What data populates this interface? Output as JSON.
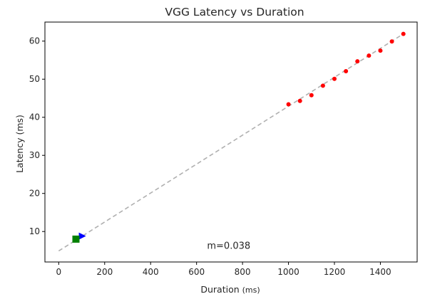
{
  "chart_data": {
    "type": "scatter",
    "title": "VGG Latency vs Duration",
    "xlabel": "Duration",
    "xlabel_unit": "(ms)",
    "ylabel": "Latency (ms)",
    "xlim": [
      -60,
      1560
    ],
    "ylim": [
      2,
      65
    ],
    "xticks": [
      0,
      200,
      400,
      600,
      800,
      1000,
      1200,
      1400
    ],
    "yticks": [
      10,
      20,
      30,
      40,
      50,
      60
    ],
    "grid": false,
    "series": [
      {
        "marker": "circle",
        "color": "#ff0000",
        "x": [
          1000,
          1050,
          1100,
          1150,
          1200,
          1250,
          1300,
          1350,
          1400,
          1450,
          1500
        ],
        "y": [
          43.4,
          44.3,
          45.8,
          48.3,
          50.1,
          52.1,
          54.7,
          56.2,
          57.5,
          59.9,
          61.9
        ]
      },
      {
        "marker": "triangle-right",
        "color": "#0000ff",
        "x": [
          100
        ],
        "y": [
          8.8
        ]
      },
      {
        "marker": "square",
        "color": "#008000",
        "x": [
          75
        ],
        "y": [
          8.0
        ]
      }
    ],
    "fit_line": {
      "style": "dashed",
      "color": "#b0b0b0",
      "slope": 0.038,
      "intercept": 4.9,
      "x_range": [
        0,
        1500
      ]
    },
    "annotations": [
      {
        "text": "m=0.038",
        "x": 740,
        "y": 5.5
      }
    ]
  }
}
